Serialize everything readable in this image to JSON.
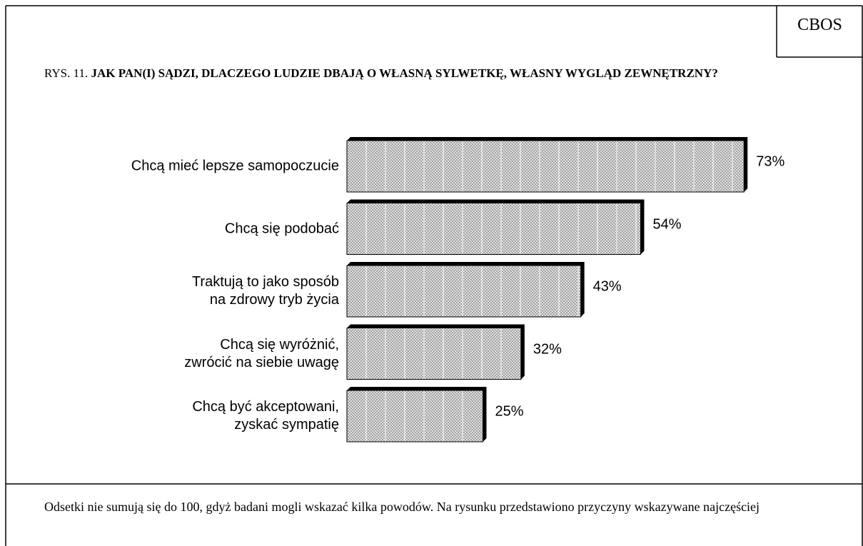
{
  "source": "CBOS",
  "chart_data": {
    "type": "bar",
    "orientation": "horizontal",
    "figure_label": "RYS. 11.",
    "title": "JAK PAN(I) SĄDZI, DLACZEGO LUDZIE DBAJĄ O WŁASNĄ SYLWETKĘ, WŁASNY WYGLĄD ZEWNĘTRZNY?",
    "categories": [
      "Chcą mieć lepsze samopoczucie",
      "Chcą się podobać",
      "Traktują to jako sposób\nna zdrowy tryb życia",
      "Chcą się wyróżnić,\nzwrócić na siebie uwagę",
      "Chcą być akceptowani,\nzyskać sympatię"
    ],
    "values": [
      73,
      54,
      43,
      32,
      25
    ],
    "value_labels": [
      "73%",
      "54%",
      "43%",
      "32%",
      "25%"
    ],
    "color": "#d9d9d9"
  },
  "footnote": "Odsetki nie sumują się do 100, gdyż badani mogli wskazać kilka powodów. Na rysunku przedstawiono przyczyny wskazywane najczęściej"
}
